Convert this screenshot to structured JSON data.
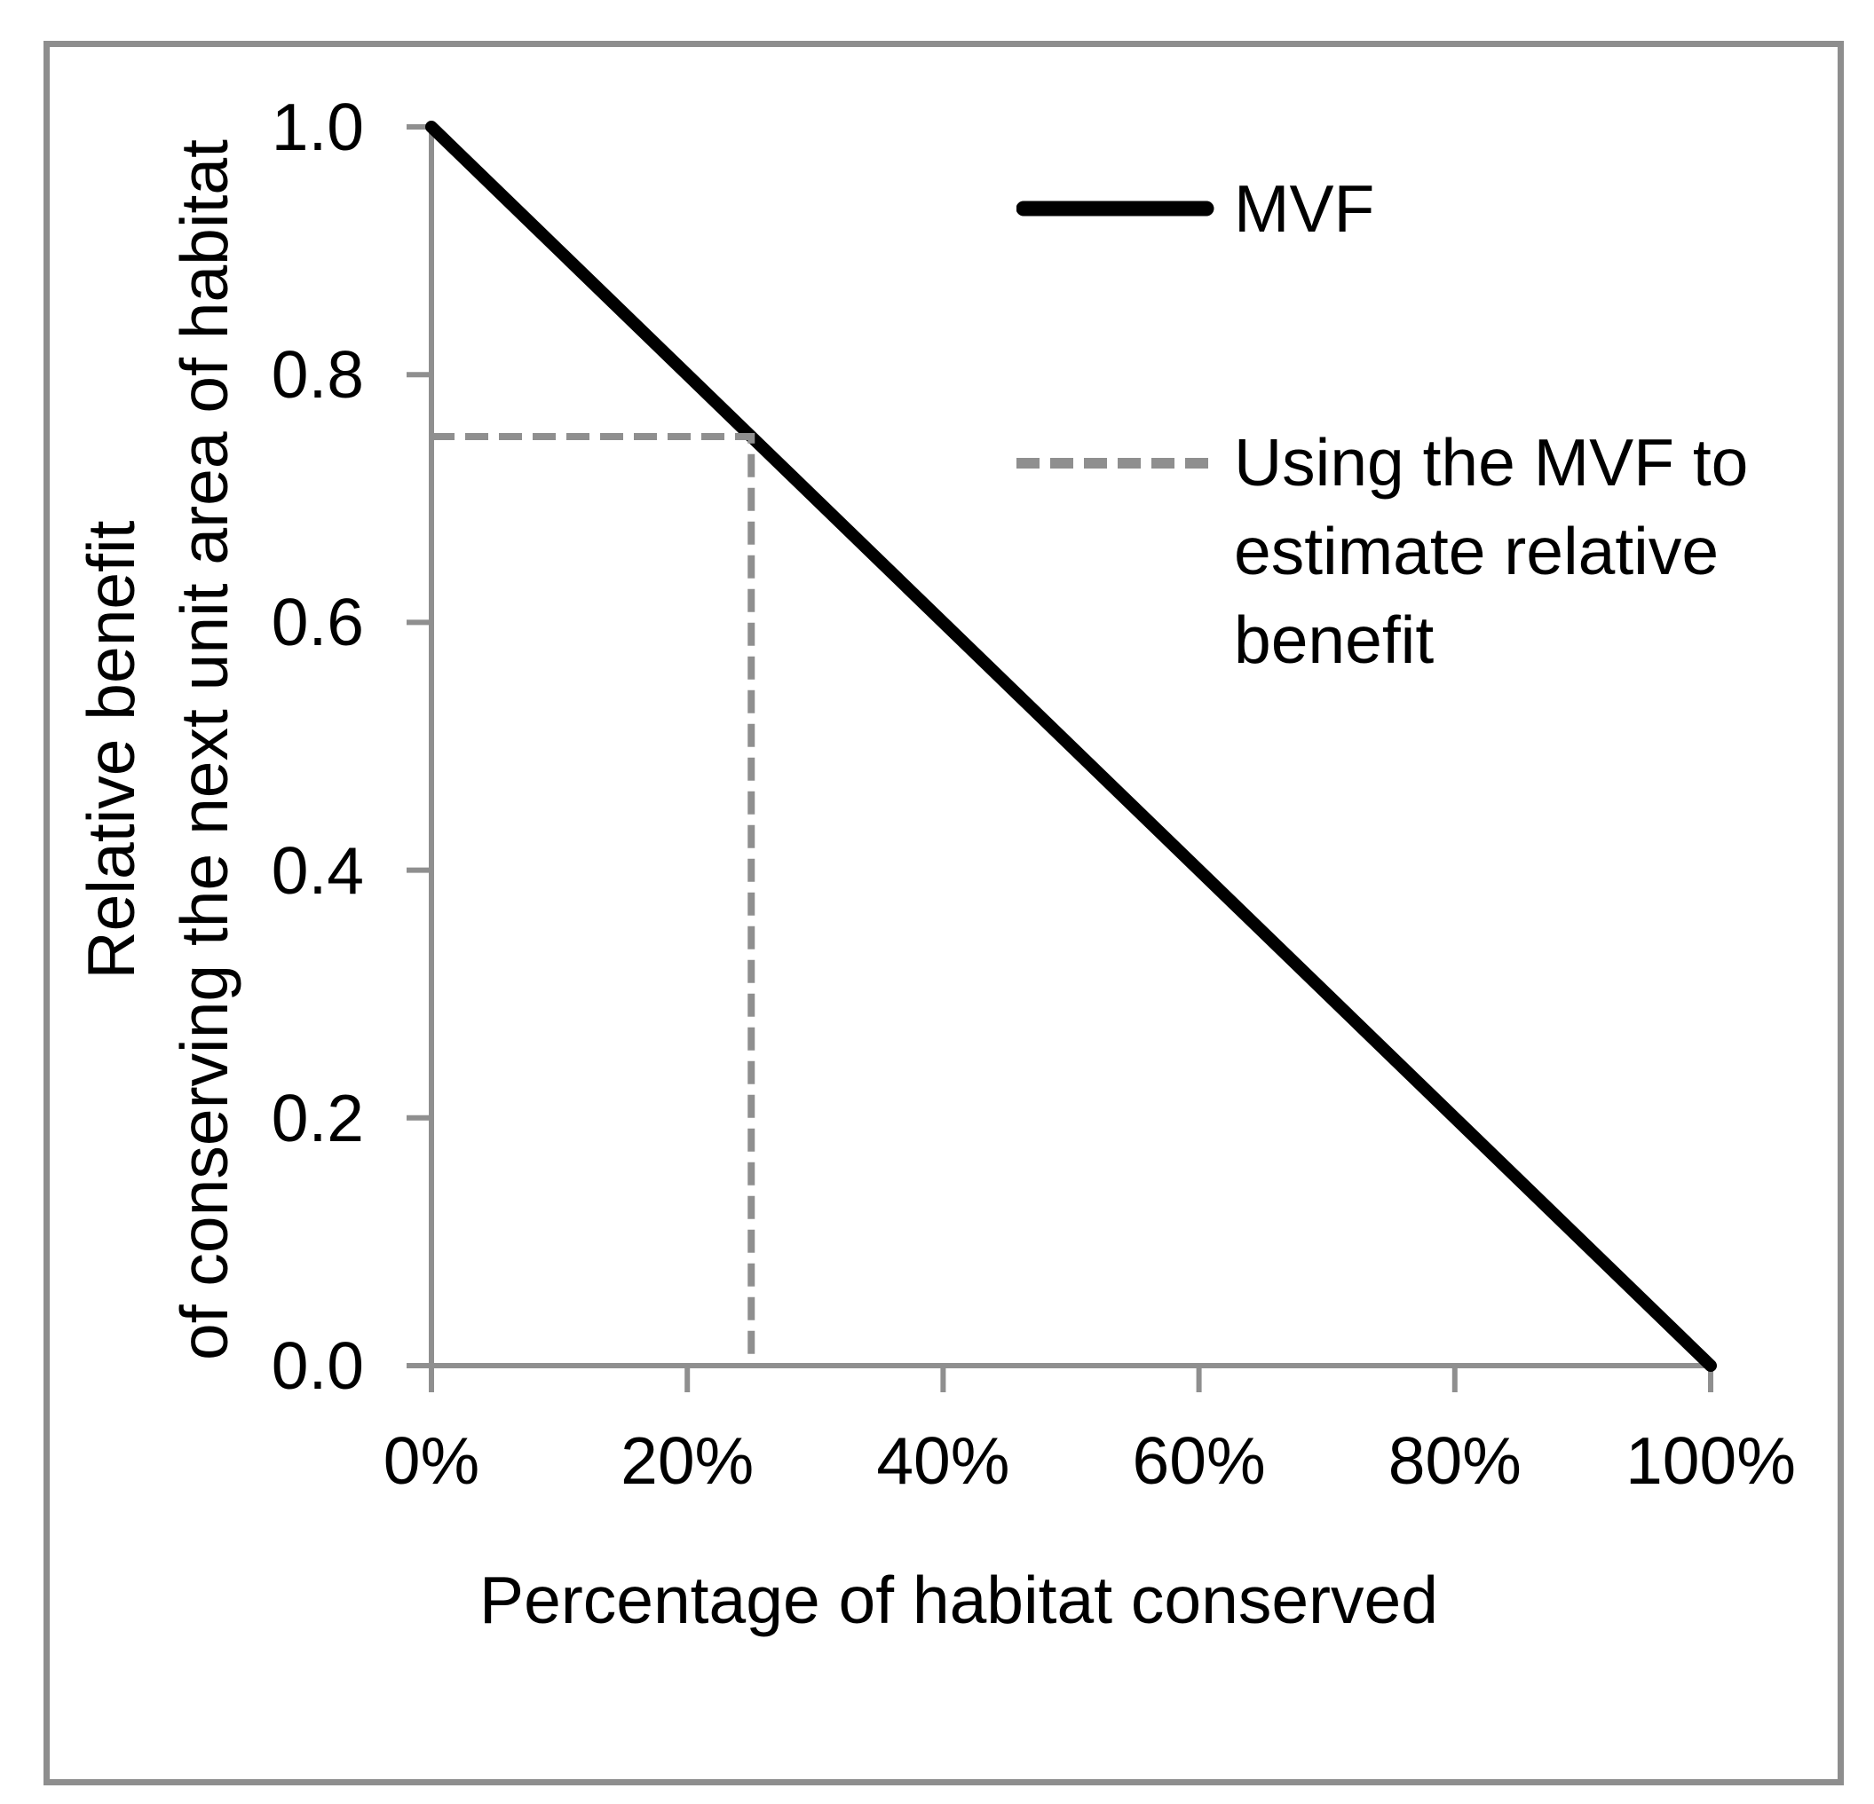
{
  "colors": {
    "frame_border": "#8e8e8e",
    "axes": "#8f8f8f",
    "mvf_line": "#000000",
    "guide_dashed": "#8f8f8f",
    "text": "#000000",
    "background": "#ffffff"
  },
  "chart_data": {
    "type": "line",
    "title": "",
    "xlabel": "Percentage of habitat conserved",
    "ylabel_line1": "Relative benefit",
    "ylabel_line2": "of conserving the next unit area of habitat",
    "xlim_pct": [
      0,
      100
    ],
    "ylim": [
      0.0,
      1.0
    ],
    "grid": false,
    "x_tick_pcts": [
      0,
      20,
      40,
      60,
      80,
      100
    ],
    "x_tick_labels": [
      "0%",
      "20%",
      "40%",
      "60%",
      "80%",
      "100%"
    ],
    "y_tick_values": [
      1.0,
      0.8,
      0.6,
      0.4,
      0.2,
      0.0
    ],
    "y_tick_labels": [
      "1.0",
      "0.8",
      "0.6",
      "0.4",
      "0.2",
      "0.0"
    ],
    "legend_position": "upper right",
    "series": [
      {
        "name": "MVF",
        "style": "solid",
        "color": "#000000",
        "points_pct_value": [
          [
            0,
            1.0
          ],
          [
            100,
            0.0
          ]
        ]
      },
      {
        "name": "Using the MVF to estimate relative benefit",
        "style": "dashed",
        "color": "#8f8f8f",
        "points_pct_value": [
          [
            0,
            0.75
          ],
          [
            25,
            0.75
          ],
          [
            25,
            0.0
          ]
        ]
      }
    ]
  },
  "legend": {
    "mvf_label": "MVF",
    "dashed_label_lines": [
      "Using the MVF to",
      "estimate relative",
      "benefit"
    ]
  }
}
